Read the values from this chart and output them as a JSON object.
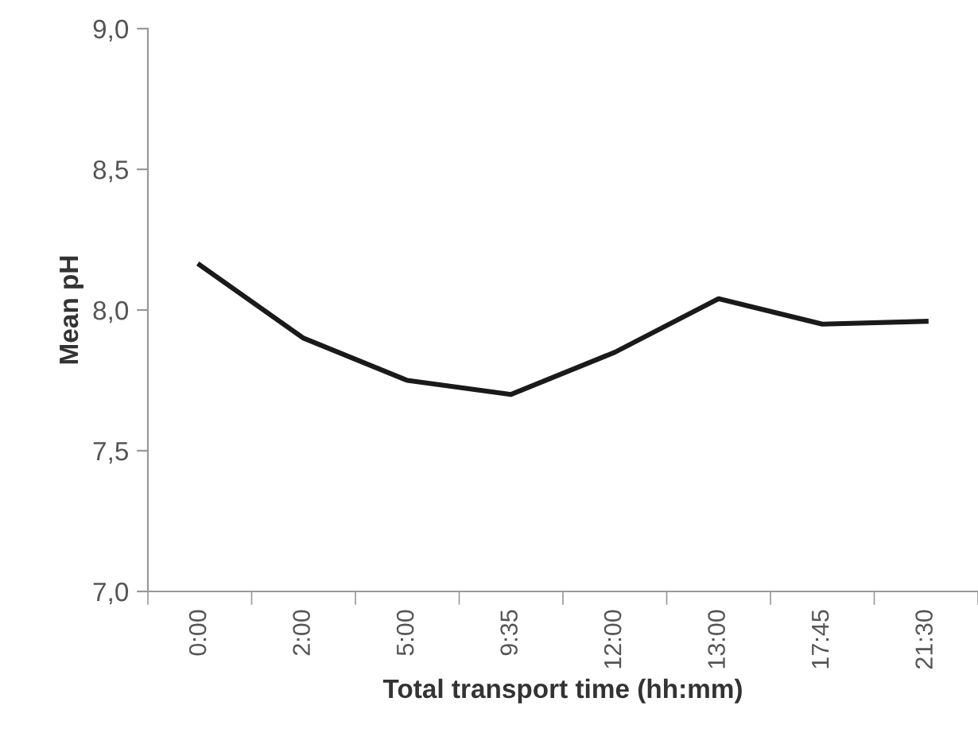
{
  "chart_data": {
    "type": "line",
    "xlabel": "Total transport time (hh:mm)",
    "ylabel": "Mean pH",
    "categories": [
      "0:00",
      "2:00",
      "5:00",
      "9:35",
      "12:00",
      "13:00",
      "17:45",
      "21:30"
    ],
    "series": [
      {
        "color": "#1a1a1a",
        "values": [
          8.16,
          7.9,
          7.75,
          7.7,
          7.85,
          8.04,
          7.95,
          7.96
        ]
      }
    ],
    "ylim": [
      7.0,
      9.0
    ],
    "yticks": [
      {
        "value": 7.0,
        "label": "7,0"
      },
      {
        "value": 7.5,
        "label": "7,5"
      },
      {
        "value": 8.0,
        "label": "8,0"
      },
      {
        "value": 8.5,
        "label": "8,5"
      },
      {
        "value": 9.0,
        "label": "9,0"
      }
    ],
    "grid": false,
    "legend": false,
    "marker": "none",
    "line_style": "solid"
  }
}
